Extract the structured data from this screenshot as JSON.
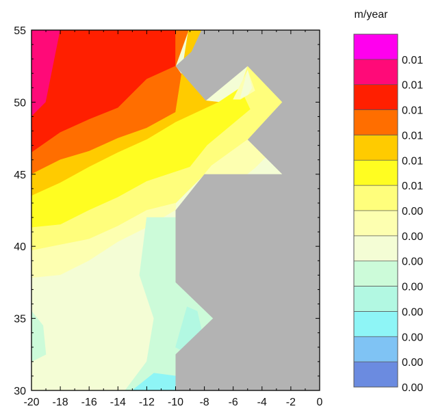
{
  "chart_data": {
    "type": "heatmap",
    "subtype": "filled-contour",
    "title": "",
    "xlabel": "",
    "ylabel": "",
    "units": "m/year",
    "xlim": [
      -20,
      0
    ],
    "ylim": [
      30,
      55
    ],
    "x_ticks": [
      -20,
      -18,
      -16,
      -14,
      -12,
      -10,
      -8,
      -6,
      -4,
      -2,
      0
    ],
    "y_ticks": [
      30,
      35,
      40,
      45,
      50,
      55
    ],
    "grid": false,
    "mask_color": "#b3b3b3",
    "colorbar": {
      "placement": "right",
      "levels": [
        0.002,
        0.003,
        0.004,
        0.005,
        0.006,
        0.007,
        0.008,
        0.009,
        0.01,
        0.011,
        0.012,
        0.013,
        0.014,
        0.015
      ],
      "level_labels": [
        "0.002",
        "0.003",
        "0.004",
        "0.005",
        "0.006",
        "0.007",
        "0.008",
        "0.009",
        "0.01",
        "0.011",
        "0.012",
        "0.013",
        "0.014",
        "0.015"
      ],
      "bin_colors": [
        "#6b8be0",
        "#7fc3f4",
        "#8ef5f6",
        "#b2f8e2",
        "#ccfbd9",
        "#f4fdd5",
        "#fdffb0",
        "#fffe7c",
        "#fffd21",
        "#ffcb00",
        "#ff6e00",
        "#ff1f00",
        "#ff0a78",
        "#ff00ee"
      ]
    },
    "regions": [
      {
        "name": "band-0.014",
        "range": [
          0.014,
          0.015
        ],
        "color": "#ff0a78",
        "polygon": [
          [
            -20,
            55
          ],
          [
            -18,
            55
          ],
          [
            -19,
            50
          ],
          [
            -20,
            49
          ]
        ]
      },
      {
        "name": "band-0.013",
        "range": [
          0.013,
          0.014
        ],
        "color": "#ff1f00",
        "polygon": [
          [
            -18,
            55
          ],
          [
            -10,
            55
          ],
          [
            -10,
            52.5
          ],
          [
            -12,
            51.6
          ],
          [
            -14,
            49.6
          ],
          [
            -16,
            48.8
          ],
          [
            -18,
            47.9
          ],
          [
            -20,
            46.5
          ],
          [
            -20,
            49
          ],
          [
            -19,
            50
          ]
        ]
      },
      {
        "name": "band-0.012",
        "range": [
          0.012,
          0.013
        ],
        "color": "#ff6e00",
        "polygon": [
          [
            -10,
            55
          ],
          [
            -9.1,
            55
          ],
          [
            -10,
            52.5
          ],
          [
            -9,
            51.1
          ],
          [
            -7.9,
            50.1
          ],
          [
            -10,
            49.3
          ],
          [
            -12,
            48.2
          ],
          [
            -14,
            47.5
          ],
          [
            -16,
            46.6
          ],
          [
            -18,
            46
          ],
          [
            -20,
            45
          ],
          [
            -20,
            46.5
          ],
          [
            -18,
            47.9
          ],
          [
            -16,
            48.8
          ],
          [
            -14,
            49.6
          ],
          [
            -12,
            51.6
          ],
          [
            -10,
            52.5
          ]
        ]
      },
      {
        "name": "band-0.011",
        "range": [
          0.011,
          0.012
        ],
        "color": "#ffcb00",
        "polygon": [
          [
            -9.1,
            55
          ],
          [
            -8.2,
            55
          ],
          [
            -8.9,
            53.5
          ],
          [
            -7.9,
            50.1
          ],
          [
            -7,
            50
          ],
          [
            -10,
            48.6
          ],
          [
            -12,
            47.4
          ],
          [
            -14,
            46.5
          ],
          [
            -16,
            45.5
          ],
          [
            -18,
            44.4
          ],
          [
            -20,
            43.5
          ],
          [
            -20,
            45
          ],
          [
            -18,
            46
          ],
          [
            -16,
            46.6
          ],
          [
            -14,
            47.5
          ],
          [
            -12,
            48.2
          ],
          [
            -10,
            49.3
          ]
        ]
      },
      {
        "name": "band-0.010",
        "range": [
          0.01,
          0.011
        ],
        "color": "#fffd21",
        "polygon": [
          [
            -7,
            50
          ],
          [
            -5.5,
            51
          ],
          [
            -4.8,
            49.5
          ],
          [
            -7.8,
            47
          ],
          [
            -9,
            45.5
          ],
          [
            -12,
            44.5
          ],
          [
            -14,
            43.4
          ],
          [
            -16,
            42.5
          ],
          [
            -18,
            41.5
          ],
          [
            -20,
            41.3
          ],
          [
            -20,
            43.5
          ],
          [
            -18,
            44.4
          ],
          [
            -16,
            45.5
          ],
          [
            -14,
            46.5
          ],
          [
            -12,
            47.4
          ],
          [
            -10,
            48.6
          ]
        ]
      },
      {
        "name": "band-0.009",
        "range": [
          0.009,
          0.01
        ],
        "color": "#fffe7c",
        "polygon": [
          [
            -5.5,
            51
          ],
          [
            -5,
            52.5
          ],
          [
            -2.6,
            50
          ],
          [
            -5,
            47.4
          ],
          [
            -4,
            45
          ],
          [
            -8,
            45
          ],
          [
            -10,
            43
          ],
          [
            -12,
            42.5
          ],
          [
            -14,
            41.4
          ],
          [
            -16,
            40.5
          ],
          [
            -18,
            40.1
          ],
          [
            -20,
            39.7
          ],
          [
            -20,
            41.3
          ],
          [
            -18,
            41.5
          ],
          [
            -16,
            42.5
          ],
          [
            -14,
            43.4
          ],
          [
            -12,
            44.5
          ],
          [
            -9,
            45.5
          ],
          [
            -7.8,
            47
          ],
          [
            -4.8,
            49.5
          ]
        ]
      },
      {
        "name": "band-0.008",
        "range": [
          0.008,
          0.009
        ],
        "color": "#fdffb0",
        "polygon": [
          [
            -10,
            43
          ],
          [
            -10,
            42.5
          ],
          [
            -12,
            41.3
          ],
          [
            -14,
            40.3
          ],
          [
            -16,
            39
          ],
          [
            -18,
            38
          ],
          [
            -20,
            37.8
          ],
          [
            -20,
            39.7
          ],
          [
            -18,
            40.1
          ],
          [
            -16,
            40.5
          ],
          [
            -14,
            41.4
          ],
          [
            -12,
            42.5
          ]
        ]
      },
      {
        "name": "band-0.007",
        "range": [
          0.007,
          0.008
        ],
        "color": "#f4fdd5",
        "polygon": [
          [
            -20,
            37.8
          ],
          [
            -18,
            38
          ],
          [
            -16,
            39
          ],
          [
            -14,
            40.3
          ],
          [
            -12,
            41.3
          ],
          [
            -10,
            42.5
          ],
          [
            -10,
            37.5
          ],
          [
            -7.4,
            35
          ],
          [
            -10,
            32.5
          ],
          [
            -10,
            30
          ],
          [
            -12,
            30
          ],
          [
            -14,
            30
          ],
          [
            -16,
            30
          ],
          [
            -18,
            30
          ],
          [
            -20,
            30
          ]
        ]
      },
      {
        "name": "band-0.006",
        "range": [
          0.006,
          0.007
        ],
        "color": "#ccfbd9",
        "polygon": [
          [
            -12,
            42
          ],
          [
            -10,
            42
          ],
          [
            -10,
            37.5
          ],
          [
            -7.4,
            35
          ],
          [
            -10,
            32.5
          ],
          [
            -10,
            30
          ],
          [
            -13.5,
            30
          ],
          [
            -12,
            32
          ],
          [
            -11.5,
            35
          ],
          [
            -12.5,
            38
          ]
        ]
      },
      {
        "name": "band-0.006-west",
        "range": [
          0.006,
          0.007
        ],
        "color": "#ccfbd9",
        "polygon": [
          [
            -20,
            35.5
          ],
          [
            -19.2,
            34.5
          ],
          [
            -19,
            32.5
          ],
          [
            -20,
            32
          ]
        ]
      },
      {
        "name": "band-0.005",
        "range": [
          0.005,
          0.006
        ],
        "color": "#b2f8e2",
        "polygon": [
          [
            -10,
            33
          ],
          [
            -9,
            32.5
          ],
          [
            -8.2,
            34.2
          ],
          [
            -8.5,
            35.5
          ],
          [
            -9.2,
            35.8
          ]
        ]
      },
      {
        "name": "band-0.004",
        "range": [
          0.004,
          0.005
        ],
        "color": "#8ef5f6",
        "polygon": [
          [
            -13,
            30
          ],
          [
            -10,
            30
          ],
          [
            -10,
            31
          ],
          [
            -11.5,
            31.2
          ]
        ]
      },
      {
        "name": "band-0.008-ne",
        "range": [
          0.008,
          0.009
        ],
        "color": "#fdffb0",
        "polygon": [
          [
            -6,
            50.2
          ],
          [
            -5,
            52.2
          ],
          [
            -4.5,
            50.8
          ],
          [
            -5.5,
            50.2
          ]
        ]
      },
      {
        "name": "band-0.007-ne",
        "range": [
          0.007,
          0.008
        ],
        "color": "#f4fdd5",
        "polygon": [
          [
            -5.5,
            50.3
          ],
          [
            -5,
            52.2
          ],
          [
            -4.7,
            51
          ],
          [
            -5,
            50.5
          ]
        ]
      },
      {
        "name": "band-0.008-se",
        "range": [
          0.008,
          0.009
        ],
        "color": "#fdffb0",
        "polygon": [
          [
            -8,
            45
          ],
          [
            -2.6,
            45
          ],
          [
            -5,
            47.4
          ],
          [
            -7.5,
            45.6
          ]
        ]
      },
      {
        "name": "band-0.007-se",
        "range": [
          0.007,
          0.008
        ],
        "color": "#f4fdd5",
        "polygon": [
          [
            -5,
            45
          ],
          [
            -2.6,
            45
          ],
          [
            -3.7,
            46.2
          ],
          [
            -4.5,
            45.4
          ]
        ]
      }
    ],
    "mask": [
      [
        -8.2,
        55
      ],
      [
        0,
        55
      ],
      [
        0,
        30
      ],
      [
        -10,
        30
      ],
      [
        -10,
        32.5
      ],
      [
        -7.4,
        35
      ],
      [
        -10,
        37.5
      ],
      [
        -10,
        42.5
      ],
      [
        -8,
        45
      ],
      [
        -2.6,
        45
      ],
      [
        -5,
        47.4
      ],
      [
        -2.6,
        50
      ],
      [
        -5,
        52.5
      ],
      [
        -7.9,
        50.1
      ],
      [
        -10,
        52.5
      ],
      [
        -8.9,
        53.5
      ]
    ]
  }
}
